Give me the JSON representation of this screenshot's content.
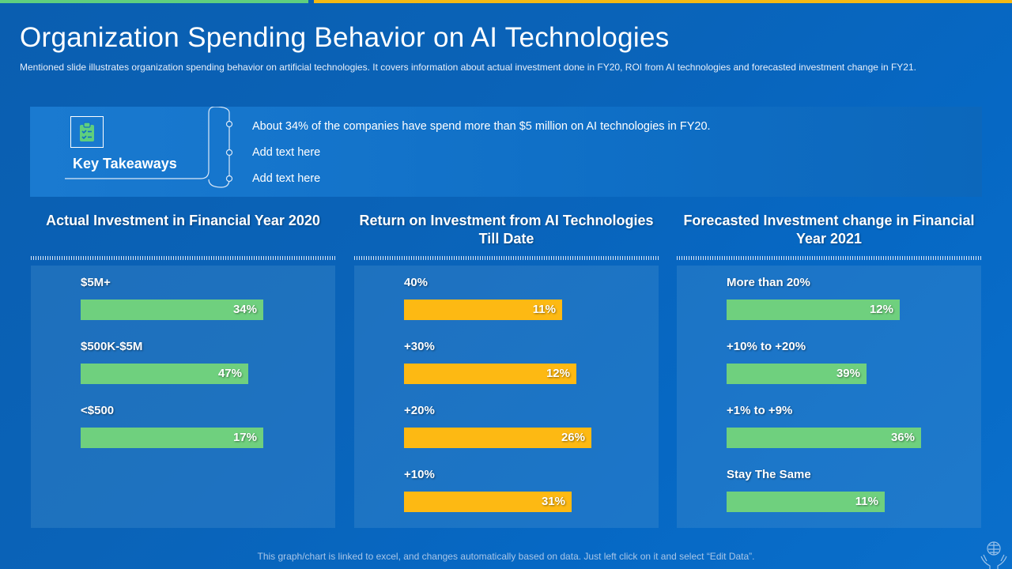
{
  "slide": {
    "title": "Organization Spending Behavior on AI Technologies",
    "subtitle": "Mentioned slide illustrates organization spending behavior  on artificial technologies. It covers information about actual investment done in FY20, ROI from AI technologies and forecasted investment change in FY21."
  },
  "takeaways": {
    "label": "Key Takeaways",
    "icon": "clipboard-check-icon",
    "items": [
      "About 34% of the companies have spend more than $5 million on AI technologies in FY20.",
      "Add text here",
      "Add text here"
    ]
  },
  "colors": {
    "green": "#6fd07e",
    "yellow": "#fdb913"
  },
  "chart_data": [
    {
      "type": "bar",
      "orientation": "horizontal",
      "title": "Actual Investment in Financial Year 2020",
      "categories": [
        "$5M+",
        "$500K-$5M",
        "<$500"
      ],
      "values": [
        34,
        47,
        17
      ],
      "labels": [
        "34%",
        "47%",
        "17%"
      ],
      "color": "#6fd07e",
      "bar_lengths": [
        0.6,
        0.55,
        0.6
      ]
    },
    {
      "type": "bar",
      "orientation": "horizontal",
      "title": "Return on Investment from AI Technologies Till Date",
      "categories": [
        "40%",
        "+30%",
        "+20%",
        "+10%"
      ],
      "values": [
        11,
        12,
        26,
        31
      ],
      "labels": [
        "11%",
        "12%",
        "26%",
        "31%"
      ],
      "color": "#fdb913",
      "bar_lengths": [
        0.52,
        0.565,
        0.615,
        0.55
      ]
    },
    {
      "type": "bar",
      "orientation": "horizontal",
      "title": "Forecasted Investment change in Financial Year 2021",
      "categories": [
        "More than 20%",
        "+10% to +20%",
        "+1% to +9%",
        "Stay The Same"
      ],
      "values": [
        12,
        39,
        36,
        11
      ],
      "labels": [
        "12%",
        "39%",
        "36%",
        "11%"
      ],
      "color": "#6fd07e",
      "bar_lengths": [
        0.57,
        0.46,
        0.64,
        0.52
      ]
    }
  ],
  "footer": {
    "note": "This graph/chart is linked to excel, and changes automatically based on data. Just left click on it and select “Edit Data”.",
    "brand_icon": "hands-brain-icon"
  }
}
